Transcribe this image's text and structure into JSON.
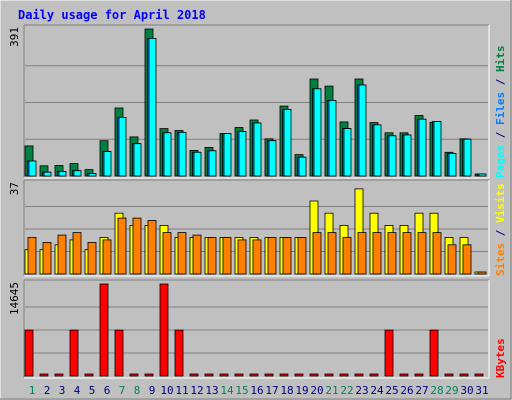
{
  "colors": {
    "background": "#c0c0c0",
    "panel": "#c0c0c0",
    "grid": "#808080",
    "title": "#0000ff",
    "hits": "#008040",
    "files": "#0080ff",
    "pages": "#00ffff",
    "visits": "#ffff00",
    "sites": "#ff8000",
    "kbytes": "#ff0000",
    "weekend_day": "#00805c",
    "weekday": "#000080"
  },
  "chart_data": {
    "type": "bar",
    "title": "Daily usage for April 2018",
    "days": [
      "1",
      "2",
      "3",
      "4",
      "5",
      "6",
      "7",
      "8",
      "9",
      "10",
      "11",
      "12",
      "13",
      "14",
      "15",
      "16",
      "17",
      "18",
      "19",
      "20",
      "21",
      "22",
      "23",
      "24",
      "25",
      "26",
      "27",
      "28",
      "29",
      "30",
      "31"
    ],
    "weekend_days": [
      1,
      7,
      8,
      14,
      15,
      21,
      22,
      28,
      29
    ],
    "panels": [
      {
        "name": "hits-files-pages",
        "max_label": "391",
        "ymax": 391,
        "labels": [
          {
            "text": "Pages",
            "color": "#00ffff"
          },
          {
            "text": " / ",
            "color": "#000080"
          },
          {
            "text": "Files",
            "color": "#0080ff"
          },
          {
            "text": " / ",
            "color": "#000080"
          },
          {
            "text": "Hits",
            "color": "#008040"
          }
        ],
        "series": [
          {
            "key": "hits",
            "color": "#008040",
            "values": [
              80,
              27,
              28,
              33,
              17,
              94,
              181,
              104,
              391,
              126,
              121,
              68,
              76,
              113,
              129,
              149,
              99,
              186,
              57,
              258,
              239,
              144,
              258,
              142,
              115,
              115,
              161,
              143,
              63,
              99,
              0
            ]
          },
          {
            "key": "files",
            "color": "#0080ff",
            "values": [
              40,
              10,
              12,
              14,
              7,
              65,
              156,
              86,
              366,
              115,
              116,
              63,
              67,
              113,
              118,
              141,
              94,
              177,
              50,
              232,
              201,
              126,
              242,
              136,
              107,
              109,
              151,
              145,
              60,
              98,
              0
            ]
          },
          {
            "key": "pages",
            "color": "#00ffff",
            "values": [
              40,
              10,
              12,
              14,
              7,
              65,
              156,
              86,
              366,
              115,
              116,
              63,
              67,
              113,
              118,
              141,
              94,
              177,
              50,
              232,
              201,
              126,
              242,
              136,
              107,
              109,
              151,
              145,
              60,
              98,
              0
            ]
          }
        ]
      },
      {
        "name": "visits-sites",
        "max_label": "37",
        "ymax": 37,
        "labels": [
          {
            "text": "Sites",
            "color": "#ff8000"
          },
          {
            "text": " / ",
            "color": "#000080"
          },
          {
            "text": "Visits",
            "color": "#ffff00"
          }
        ],
        "series": [
          {
            "key": "visits",
            "color": "#ffff00",
            "values": [
              10,
              10,
              12,
              14,
              10,
              15,
              25,
              20,
              20,
              20,
              15,
              15,
              15,
              15,
              15,
              15,
              15,
              15,
              15,
              30,
              25,
              20,
              35,
              25,
              20,
              20,
              25,
              25,
              15,
              15,
              0
            ]
          },
          {
            "key": "sites",
            "color": "#ff8000",
            "values": [
              15,
              13,
              16,
              17,
              13,
              14,
              23,
              23,
              22,
              17,
              17,
              16,
              15,
              15,
              14,
              14,
              15,
              15,
              15,
              17,
              17,
              15,
              17,
              17,
              17,
              17,
              17,
              17,
              12,
              12,
              0
            ]
          }
        ]
      },
      {
        "name": "kbytes",
        "max_label": "14645",
        "ymax": 14645,
        "labels": [
          {
            "text": "KBytes",
            "color": "#ff0000"
          }
        ],
        "series": [
          {
            "key": "kbytes",
            "color": "#ff0000",
            "values": [
              7300,
              0,
              0,
              7300,
              0,
              14645,
              7300,
              0,
              0,
              14645,
              7300,
              0,
              0,
              0,
              0,
              0,
              0,
              0,
              0,
              0,
              0,
              0,
              0,
              0,
              7300,
              0,
              0,
              7300,
              0,
              0,
              0
            ]
          }
        ]
      }
    ]
  }
}
